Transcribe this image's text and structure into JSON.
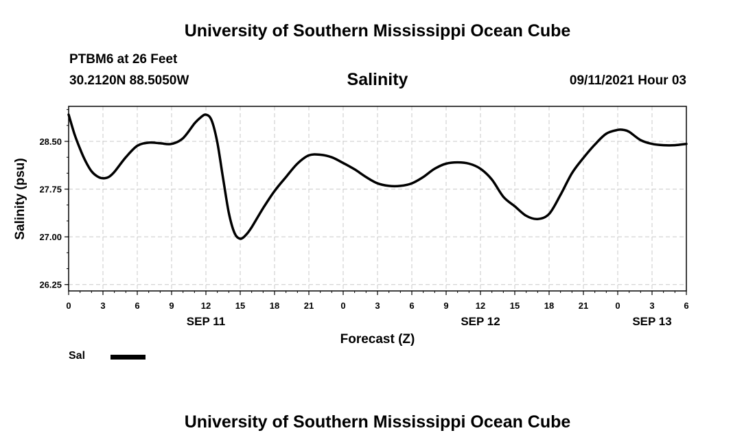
{
  "header": {
    "title_top": "University of Southern Mississippi Ocean Cube",
    "title_bottom": "University of Southern Mississippi Ocean Cube",
    "station": "PTBM6 at 26 Feet",
    "coords": "30.2120N  88.5050W",
    "datetime": "09/11/2021 Hour 03"
  },
  "chart_data": {
    "type": "line",
    "title": "Salinity",
    "xlabel": "Forecast (Z)",
    "ylabel": "Salinity (psu)",
    "xlim": [
      0,
      54
    ],
    "ylim": [
      26.15,
      29.05
    ],
    "grid": true,
    "x_ticks": [
      {
        "x": 0,
        "label": "0"
      },
      {
        "x": 3,
        "label": "3"
      },
      {
        "x": 6,
        "label": "6"
      },
      {
        "x": 9,
        "label": "9"
      },
      {
        "x": 12,
        "label": "12"
      },
      {
        "x": 15,
        "label": "15"
      },
      {
        "x": 18,
        "label": "18"
      },
      {
        "x": 21,
        "label": "21"
      },
      {
        "x": 24,
        "label": "0"
      },
      {
        "x": 27,
        "label": "3"
      },
      {
        "x": 30,
        "label": "6"
      },
      {
        "x": 33,
        "label": "9"
      },
      {
        "x": 36,
        "label": "12"
      },
      {
        "x": 39,
        "label": "15"
      },
      {
        "x": 42,
        "label": "18"
      },
      {
        "x": 45,
        "label": "21"
      },
      {
        "x": 48,
        "label": "0"
      },
      {
        "x": 51,
        "label": "3"
      },
      {
        "x": 54,
        "label": "6"
      }
    ],
    "date_labels": [
      {
        "x": 12,
        "label": "SEP 11"
      },
      {
        "x": 36,
        "label": "SEP 12"
      },
      {
        "x": 51,
        "label": "SEP 13"
      }
    ],
    "y_ticks": [
      26.25,
      27.0,
      27.75,
      28.5
    ],
    "y_tick_labels": [
      "26.25",
      "27.00",
      "27.75",
      "28.50"
    ],
    "legend": {
      "label": "Sal",
      "position": "bottom-left"
    },
    "series": [
      {
        "name": "Sal",
        "x": [
          0,
          0.5,
          1,
          1.5,
          2,
          2.5,
          3,
          3.5,
          4,
          5,
          6,
          7,
          8,
          9,
          10,
          11,
          11.5,
          12,
          12.5,
          13,
          13.5,
          14,
          14.5,
          15,
          15.5,
          16,
          17,
          18,
          19,
          20,
          21,
          22,
          23,
          24,
          25,
          26,
          27,
          28,
          29,
          30,
          31,
          32,
          33,
          34,
          35,
          36,
          37,
          38,
          39,
          40,
          41,
          42,
          43,
          44,
          45,
          46,
          47,
          48,
          48.5,
          49,
          50,
          51,
          52,
          53,
          54
        ],
        "y": [
          28.92,
          28.62,
          28.38,
          28.18,
          28.03,
          27.95,
          27.92,
          27.94,
          28.02,
          28.25,
          28.43,
          28.48,
          28.47,
          28.46,
          28.55,
          28.78,
          28.87,
          28.92,
          28.83,
          28.48,
          27.92,
          27.38,
          27.06,
          26.97,
          27.03,
          27.15,
          27.45,
          27.72,
          27.94,
          28.15,
          28.28,
          28.29,
          28.25,
          28.16,
          28.06,
          27.94,
          27.84,
          27.8,
          27.8,
          27.84,
          27.94,
          28.07,
          28.15,
          28.17,
          28.15,
          28.07,
          27.9,
          27.63,
          27.48,
          27.33,
          27.28,
          27.36,
          27.66,
          28.0,
          28.24,
          28.45,
          28.62,
          28.68,
          28.68,
          28.65,
          28.52,
          28.46,
          28.44,
          28.44,
          28.46
        ]
      }
    ]
  }
}
